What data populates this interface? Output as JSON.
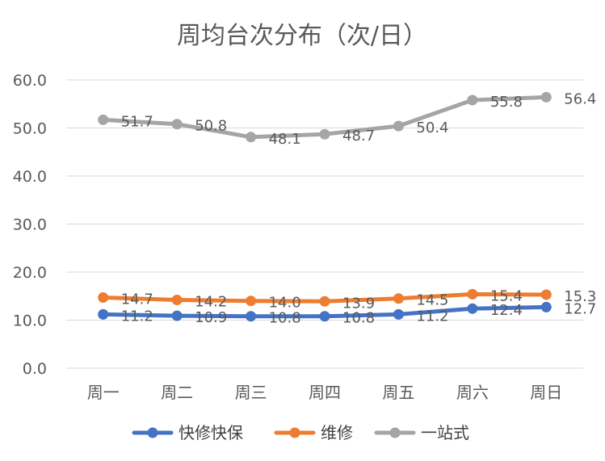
{
  "chart_data": {
    "type": "line",
    "title": "周均台次分布（次/日）",
    "categories": [
      "周一",
      "周二",
      "周三",
      "周四",
      "周五",
      "周六",
      "周日"
    ],
    "series": [
      {
        "name": "快修快保",
        "values": [
          11.2,
          10.9,
          10.8,
          10.8,
          11.2,
          12.4,
          12.7
        ],
        "color": "#4472C4"
      },
      {
        "name": "维修",
        "values": [
          14.7,
          14.2,
          14.0,
          13.9,
          14.5,
          15.4,
          15.3
        ],
        "color": "#ED7D31"
      },
      {
        "name": "一站式",
        "values": [
          51.7,
          50.8,
          48.1,
          48.7,
          50.4,
          55.8,
          56.4
        ],
        "color": "#A5A5A5"
      }
    ],
    "ylim": [
      0,
      60
    ],
    "yticks": [
      "0.0",
      "10.0",
      "20.0",
      "30.0",
      "40.0",
      "50.0",
      "60.0"
    ],
    "grid": true,
    "legend_position": "bottom",
    "gridline_color": "#D9D9D9",
    "text_color": "#595959"
  }
}
